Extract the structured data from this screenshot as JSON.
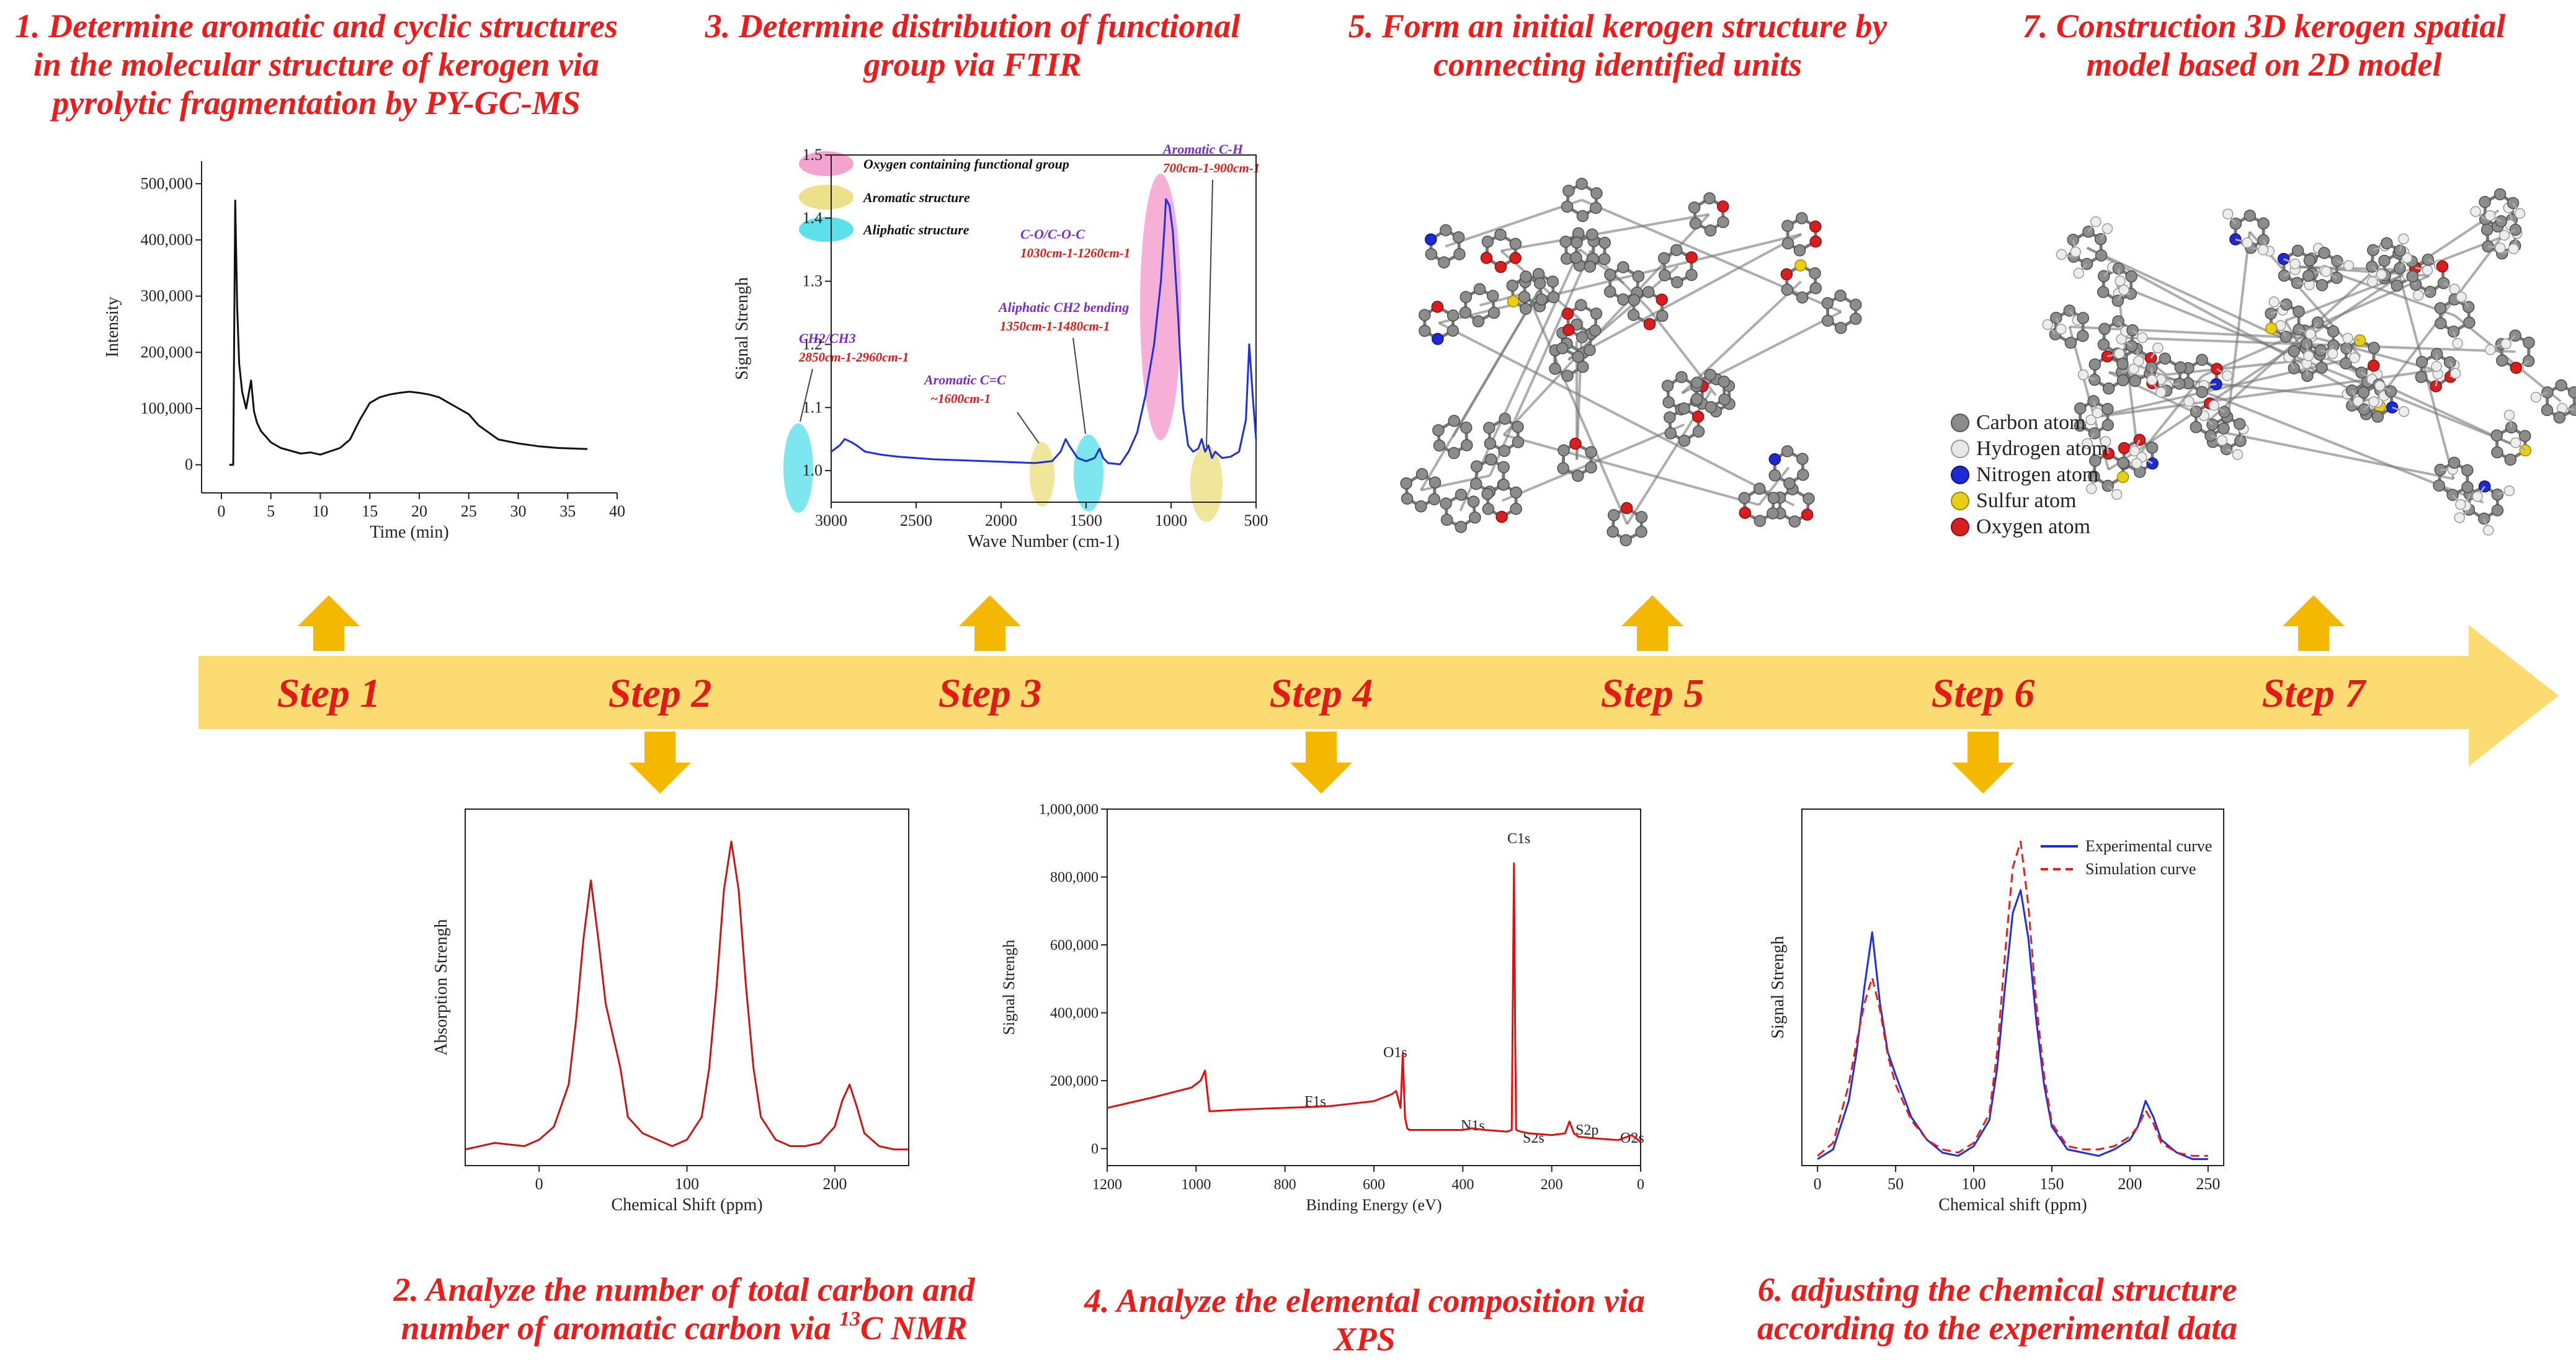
{
  "captions": {
    "c1": [
      "1. Determine aromatic and cyclic structures",
      "in the molecular structure of kerogen via",
      "pyrolytic fragmentation by PY-GC-MS"
    ],
    "c3": [
      "3. Determine distribution of  functional",
      "group via FTIR"
    ],
    "c5": [
      "5. Form an initial kerogen structure by",
      "connecting identified units"
    ],
    "c7": [
      "7. Construction 3D kerogen spatial",
      "model based on 2D model"
    ],
    "c2": [
      "2. Analyze the number of total carbon and",
      "number of aromatic carbon via ",
      "13",
      "C NMR"
    ],
    "c4": [
      "4. Analyze the elemental composition via",
      "XPS"
    ],
    "c6": [
      "6. adjusting the chemical structure",
      "according to the experimental data"
    ]
  },
  "steps": [
    "Step 1",
    "Step 2",
    "Step 3",
    "Step 4",
    "Step 5",
    "Step 6",
    "Step 7"
  ],
  "colors": {
    "arrow": "#fcdc72",
    "arrowUp": "#f5b800",
    "caption": "#ee1b1b",
    "step": "#e31a1a"
  },
  "chart_data": [
    {
      "id": "pygcms",
      "type": "line",
      "xlabel": "Time (min)",
      "ylabel": "Intensity",
      "xlim": [
        -2,
        40
      ],
      "ylim": [
        -50000,
        540000
      ],
      "xticks": [
        0,
        5,
        10,
        15,
        20,
        25,
        30,
        35,
        40
      ],
      "yticks": [
        0,
        100000,
        200000,
        300000,
        400000,
        500000
      ],
      "ytick_labels": [
        "0",
        "100,000",
        "200,000",
        "300,000",
        "400,000",
        "500,000"
      ],
      "x": [
        0.8,
        1.2,
        1.4,
        1.6,
        1.8,
        2.1,
        2.5,
        3.0,
        3.3,
        3.6,
        4.0,
        5,
        6,
        7,
        8,
        9,
        10,
        12,
        13,
        14,
        15,
        16,
        17,
        18,
        19,
        20,
        21,
        22,
        23,
        24,
        25,
        26,
        28,
        30,
        32,
        34,
        37
      ],
      "values": [
        0,
        0,
        470000,
        280000,
        180000,
        130000,
        100000,
        150000,
        95000,
        75000,
        60000,
        40000,
        30000,
        25000,
        20000,
        22000,
        18000,
        30000,
        45000,
        80000,
        110000,
        120000,
        125000,
        128000,
        130000,
        128000,
        125000,
        120000,
        110000,
        100000,
        90000,
        70000,
        45000,
        38000,
        33000,
        30000,
        28000
      ]
    },
    {
      "id": "ftir",
      "type": "line",
      "xlabel": "Wave Number (cm-1)",
      "ylabel": "Signal Strengh",
      "xlim": [
        3000,
        500
      ],
      "ylim": [
        0.95,
        1.5
      ],
      "xticks": [
        3000,
        2500,
        2000,
        1500,
        1000,
        500
      ],
      "yticks": [
        1.0,
        1.1,
        1.2,
        1.3,
        1.4,
        1.5
      ],
      "ytick_labels": [
        "1.0",
        "1.1",
        "1.2",
        "1.3",
        "1.4",
        "1.5"
      ],
      "x": [
        3000,
        2950,
        2920,
        2880,
        2850,
        2800,
        2700,
        2600,
        2500,
        2400,
        2300,
        2200,
        2100,
        2000,
        1900,
        1800,
        1700,
        1650,
        1620,
        1600,
        1550,
        1500,
        1450,
        1420,
        1400,
        1370,
        1300,
        1250,
        1200,
        1150,
        1100,
        1080,
        1060,
        1040,
        1030,
        1010,
        990,
        960,
        930,
        900,
        870,
        840,
        820,
        800,
        780,
        760,
        740,
        720,
        700,
        650,
        600,
        560,
        540,
        520,
        500
      ],
      "values": [
        1.03,
        1.04,
        1.05,
        1.045,
        1.04,
        1.03,
        1.025,
        1.022,
        1.02,
        1.018,
        1.017,
        1.016,
        1.015,
        1.014,
        1.013,
        1.012,
        1.015,
        1.03,
        1.05,
        1.04,
        1.02,
        1.015,
        1.02,
        1.035,
        1.02,
        1.012,
        1.01,
        1.03,
        1.06,
        1.12,
        1.2,
        1.25,
        1.3,
        1.38,
        1.43,
        1.42,
        1.38,
        1.25,
        1.1,
        1.04,
        1.03,
        1.035,
        1.05,
        1.03,
        1.04,
        1.02,
        1.03,
        1.025,
        1.02,
        1.022,
        1.03,
        1.08,
        1.2,
        1.12,
        1.05
      ],
      "legend": [
        "Oxygen containing functional group",
        "Aromatic structure",
        "Aliphatic structure"
      ],
      "annotations": [
        {
          "label": "CH2/CH3",
          "sub": "2850cm-1-2960cm-1"
        },
        {
          "label": "Aromatic C=C",
          "sub": "~1600cm-1"
        },
        {
          "label": "Aliphatic CH2 bending",
          "sub": "1350cm-1-1480cm-1"
        },
        {
          "label": "C-O/C-O-C",
          "sub": "1030cm-1-1260cm-1"
        },
        {
          "label": "Aromatic C-H",
          "sub": "700cm-1-900cm-1"
        }
      ]
    },
    {
      "id": "nmr",
      "type": "line",
      "xlabel": "Chemical Shift (ppm)",
      "ylabel": "Absorption Strengh",
      "xlim": [
        -50,
        250
      ],
      "ylim": [
        0,
        1.1
      ],
      "xticks": [
        0,
        100,
        200
      ],
      "x": [
        -50,
        -30,
        -10,
        0,
        10,
        20,
        25,
        30,
        35,
        40,
        45,
        50,
        55,
        60,
        70,
        80,
        90,
        100,
        110,
        115,
        120,
        125,
        130,
        135,
        140,
        145,
        150,
        160,
        170,
        180,
        190,
        200,
        205,
        210,
        215,
        220,
        230,
        240,
        250
      ],
      "values": [
        0.05,
        0.07,
        0.06,
        0.08,
        0.12,
        0.25,
        0.45,
        0.7,
        0.88,
        0.7,
        0.5,
        0.4,
        0.3,
        0.15,
        0.1,
        0.08,
        0.06,
        0.08,
        0.15,
        0.3,
        0.55,
        0.85,
        1.0,
        0.85,
        0.55,
        0.3,
        0.15,
        0.08,
        0.06,
        0.06,
        0.07,
        0.12,
        0.2,
        0.25,
        0.18,
        0.1,
        0.06,
        0.05,
        0.05
      ]
    },
    {
      "id": "xps",
      "type": "line",
      "xlabel": "Binding Energy (eV)",
      "ylabel": "Signal Strengh",
      "xlim": [
        1200,
        0
      ],
      "ylim": [
        -50000,
        1000000
      ],
      "xticks": [
        1200,
        1000,
        800,
        600,
        400,
        200,
        0
      ],
      "yticks": [
        0,
        200000,
        400000,
        600000,
        800000,
        1000000
      ],
      "ytick_labels": [
        "0",
        "200,000",
        "400,000",
        "600,000",
        "800,000",
        "1,000,000"
      ],
      "x": [
        1200,
        1100,
        1010,
        990,
        980,
        970,
        900,
        800,
        700,
        600,
        560,
        550,
        540,
        535,
        530,
        525,
        520,
        500,
        450,
        400,
        380,
        350,
        300,
        290,
        285,
        282,
        280,
        270,
        250,
        200,
        170,
        160,
        150,
        140,
        100,
        50,
        20,
        0
      ],
      "values": [
        120000,
        150000,
        180000,
        200000,
        230000,
        110000,
        115000,
        120000,
        125000,
        140000,
        160000,
        170000,
        120000,
        280000,
        90000,
        60000,
        55000,
        55000,
        55000,
        55000,
        60000,
        55000,
        50000,
        55000,
        840000,
        300000,
        55000,
        50000,
        45000,
        40000,
        45000,
        80000,
        45000,
        35000,
        30000,
        25000,
        40000,
        20000
      ],
      "peak_labels": [
        "C1s",
        "O1s",
        "F1s",
        "N1s",
        "S2s",
        "S2p",
        "O2s"
      ]
    },
    {
      "id": "fit",
      "type": "line",
      "xlabel": "Chemical shift (ppm)",
      "ylabel": "Signal Strengh",
      "xlim": [
        -10,
        260
      ],
      "ylim": [
        0,
        1.1
      ],
      "xticks": [
        0,
        50,
        100,
        150,
        200,
        250
      ],
      "x": [
        0,
        10,
        20,
        25,
        30,
        35,
        40,
        45,
        50,
        60,
        70,
        80,
        90,
        100,
        110,
        115,
        120,
        125,
        130,
        135,
        140,
        145,
        150,
        160,
        170,
        180,
        190,
        200,
        205,
        210,
        215,
        220,
        230,
        240,
        250
      ],
      "series": [
        {
          "name": "Experimental curve",
          "values": [
            0.02,
            0.05,
            0.2,
            0.35,
            0.55,
            0.72,
            0.5,
            0.35,
            0.28,
            0.15,
            0.08,
            0.04,
            0.03,
            0.06,
            0.14,
            0.3,
            0.55,
            0.78,
            0.85,
            0.7,
            0.45,
            0.25,
            0.12,
            0.05,
            0.04,
            0.03,
            0.05,
            0.08,
            0.12,
            0.2,
            0.15,
            0.08,
            0.04,
            0.02,
            0.02
          ]
        },
        {
          "name": "Simulation curve",
          "values": [
            0.03,
            0.07,
            0.25,
            0.38,
            0.5,
            0.58,
            0.48,
            0.34,
            0.25,
            0.14,
            0.08,
            0.05,
            0.04,
            0.07,
            0.16,
            0.35,
            0.65,
            0.92,
            1.0,
            0.8,
            0.5,
            0.28,
            0.13,
            0.06,
            0.05,
            0.05,
            0.06,
            0.09,
            0.12,
            0.17,
            0.13,
            0.07,
            0.04,
            0.03,
            0.03
          ]
        }
      ]
    }
  ],
  "molecule_legend": [
    "Carbon atom",
    "Hydrogen atom",
    "Nitrogen atom",
    "Sulfur atom",
    "Oxygen atom"
  ]
}
